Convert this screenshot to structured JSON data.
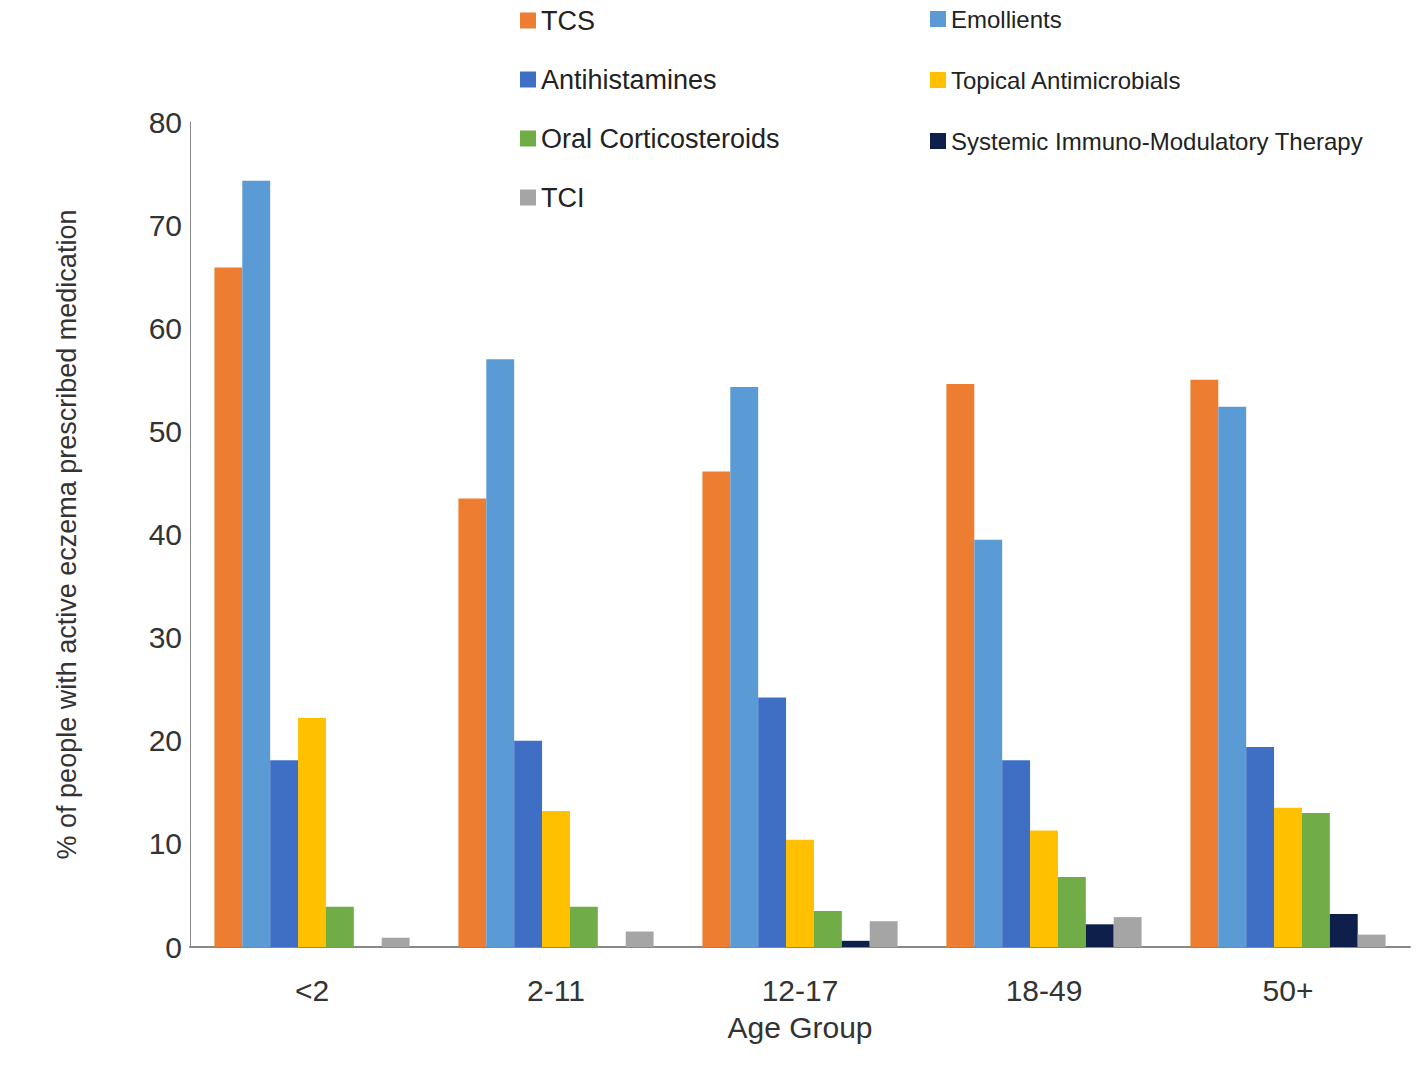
{
  "chart_data": {
    "type": "bar",
    "x_label": "Age Group",
    "y_label": "% of people with active eczema prescribed medication",
    "categories": [
      "<2",
      "2-11",
      "12-17",
      "18-49",
      "50+"
    ],
    "series": [
      {
        "name": "TCS",
        "color": "#ED7D31",
        "values": [
          65.9,
          43.5,
          46.1,
          54.6,
          55.0
        ]
      },
      {
        "name": "Emollients",
        "color": "#5B9BD5",
        "values": [
          74.3,
          57.0,
          54.3,
          39.5,
          52.4
        ]
      },
      {
        "name": "Antihistamines",
        "color": "#3F6FC4",
        "values": [
          18.1,
          20.0,
          24.2,
          18.1,
          19.4
        ]
      },
      {
        "name": "Topical Antimicrobials",
        "color": "#FFC000",
        "values": [
          22.2,
          13.2,
          10.4,
          11.3,
          13.5
        ]
      },
      {
        "name": "Oral Corticosteroids",
        "color": "#70AD47",
        "values": [
          3.9,
          3.9,
          3.5,
          6.8,
          13.0
        ]
      },
      {
        "name": "Systemic Immuno-Modulatory Therapy",
        "color": "#0F1F4B",
        "values": [
          0,
          0,
          0.6,
          2.2,
          3.2
        ]
      },
      {
        "name": "TCI",
        "color": "#A5A5A5",
        "values": [
          0.9,
          1.5,
          2.5,
          2.9,
          1.2
        ]
      }
    ],
    "ylim": [
      0,
      80
    ],
    "yticks": [
      0,
      10,
      20,
      30,
      40,
      50,
      60,
      70,
      80
    ],
    "grid": false,
    "legend": "top-right"
  }
}
